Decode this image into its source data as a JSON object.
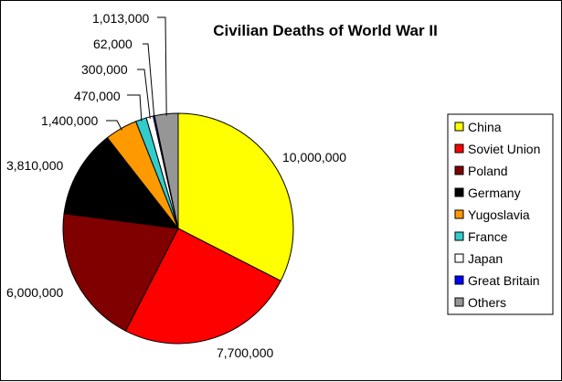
{
  "chart_data": {
    "type": "pie",
    "title": "Civilian Deaths of World War II",
    "legend_position": "right",
    "unit": "",
    "slices": [
      {
        "label": "China",
        "value": 10000000,
        "display": "10,000,000",
        "color": "#FFFF00"
      },
      {
        "label": "Soviet Union",
        "value": 7700000,
        "display": "7,700,000",
        "color": "#FF0000"
      },
      {
        "label": "Poland",
        "value": 6000000,
        "display": "6,000,000",
        "color": "#800000"
      },
      {
        "label": "Germany",
        "value": 3810000,
        "display": "3,810,000",
        "color": "#000000"
      },
      {
        "label": "Yugoslavia",
        "value": 1400000,
        "display": "1,400,000",
        "color": "#FF9900"
      },
      {
        "label": "France",
        "value": 470000,
        "display": "470,000",
        "color": "#33CCCC"
      },
      {
        "label": "Japan",
        "value": 300000,
        "display": "300,000",
        "color": "#FFFFFF"
      },
      {
        "label": "Great Britain",
        "value": 62000,
        "display": "62,000",
        "color": "#0000FF"
      },
      {
        "label": "Others",
        "value": 1013000,
        "display": "1,013,000",
        "color": "#969696"
      }
    ]
  }
}
